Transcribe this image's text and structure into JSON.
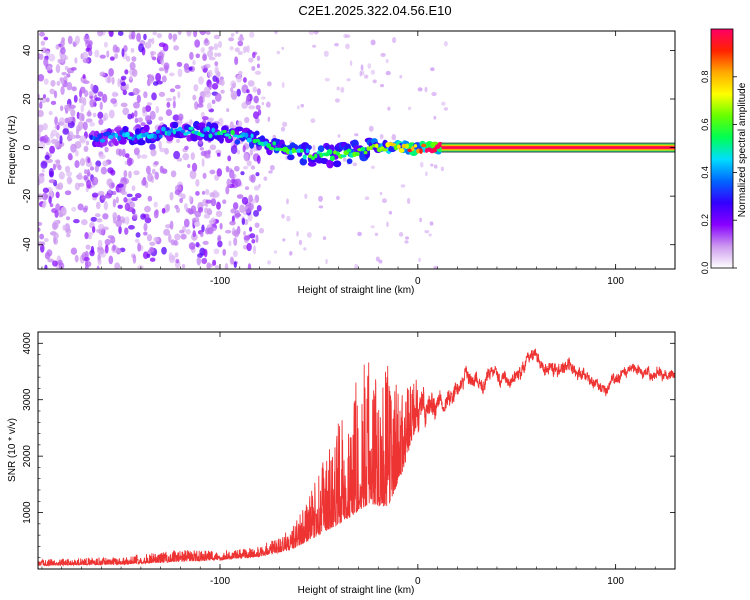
{
  "title": "C2E1.2025.322.04.56.E10",
  "chart_data": [
    {
      "type": "heatmap",
      "name": "spectrogram",
      "xlabel": "Height of straight line (km)",
      "ylabel": "Frequency (Hz)",
      "xlim": [
        -192,
        130
      ],
      "ylim": [
        -50,
        48
      ],
      "xticks": [
        -100,
        0,
        100
      ],
      "yticks": [
        -40,
        -20,
        0,
        20,
        40
      ],
      "grid": false,
      "colorbar": {
        "label": "Normalized spectral amplitude",
        "range": [
          0,
          1
        ],
        "ticks": [
          "0.0",
          "0.2",
          "0.4",
          "0.6",
          "0.8"
        ],
        "colors": [
          "#ffffff",
          "#cc99ee",
          "#8800ff",
          "#3300ff",
          "#0066ff",
          "#00ddff",
          "#00ff55",
          "#66ff00",
          "#ffff00",
          "#ffaa00",
          "#ff2200",
          "#ff0066"
        ]
      },
      "features": {
        "noise_band_x": [
          -192,
          -80
        ],
        "noise_stripes_x": [
          [
            -140,
            -110
          ],
          [
            -100,
            -88
          ]
        ],
        "signal_track": [
          {
            "x": -165,
            "freq": 4,
            "amp": 0.35
          },
          {
            "x": -140,
            "freq": 5,
            "amp": 0.45
          },
          {
            "x": -120,
            "freq": 7,
            "amp": 0.45
          },
          {
            "x": -100,
            "freq": 6,
            "amp": 0.5
          },
          {
            "x": -85,
            "freq": 4,
            "amp": 0.5
          },
          {
            "x": -70,
            "freq": 0,
            "amp": 0.55
          },
          {
            "x": -55,
            "freq": -3,
            "amp": 0.55
          },
          {
            "x": -40,
            "freq": -3,
            "amp": 0.55
          },
          {
            "x": -25,
            "freq": -1,
            "amp": 0.6
          },
          {
            "x": -15,
            "freq": 0,
            "amp": 0.7
          },
          {
            "x": 0,
            "freq": 0,
            "amp": 0.9
          },
          {
            "x": 12,
            "freq": 0,
            "amp": 1.0
          }
        ],
        "carrier_line": {
          "x_start": 12,
          "x_end": 130,
          "freq": 0,
          "amp": 1.0
        }
      }
    },
    {
      "type": "line",
      "name": "snr",
      "xlabel": "Height of straight line (km)",
      "ylabel": "SNR (10 * v/v)",
      "xlim": [
        -192,
        130
      ],
      "ylim": [
        0,
        4200
      ],
      "xticks": [
        -100,
        0,
        100
      ],
      "yticks": [
        1000,
        2000,
        3000,
        4000
      ],
      "grid": false,
      "color": "#ee3333",
      "envelope": [
        {
          "x": -192,
          "base": 60,
          "spread": 110
        },
        {
          "x": -150,
          "base": 80,
          "spread": 140
        },
        {
          "x": -120,
          "base": 130,
          "spread": 220
        },
        {
          "x": -100,
          "base": 160,
          "spread": 160
        },
        {
          "x": -80,
          "base": 220,
          "spread": 180
        },
        {
          "x": -65,
          "base": 330,
          "spread": 360
        },
        {
          "x": -55,
          "base": 500,
          "spread": 800
        },
        {
          "x": -45,
          "base": 700,
          "spread": 1500
        },
        {
          "x": -35,
          "base": 900,
          "spread": 2200
        },
        {
          "x": -25,
          "base": 1150,
          "spread": 2700
        },
        {
          "x": -15,
          "base": 1100,
          "spread": 2500
        },
        {
          "x": -8,
          "base": 1700,
          "spread": 1500
        },
        {
          "x": 0,
          "base": 2600,
          "spread": 800
        },
        {
          "x": 10,
          "base": 2900,
          "spread": 500
        },
        {
          "x": 20,
          "base": 3300,
          "spread": 350
        },
        {
          "x": 30,
          "base": 3500,
          "spread": 350
        },
        {
          "x": 45,
          "base": 3500,
          "spread": 300
        },
        {
          "x": 60,
          "base": 3800,
          "spread": 300
        },
        {
          "x": 70,
          "base": 3600,
          "spread": 300
        },
        {
          "x": 80,
          "base": 3500,
          "spread": 300
        },
        {
          "x": 95,
          "base": 3100,
          "spread": 250
        },
        {
          "x": 110,
          "base": 3500,
          "spread": 250
        },
        {
          "x": 130,
          "base": 3450,
          "spread": 250
        }
      ]
    }
  ]
}
